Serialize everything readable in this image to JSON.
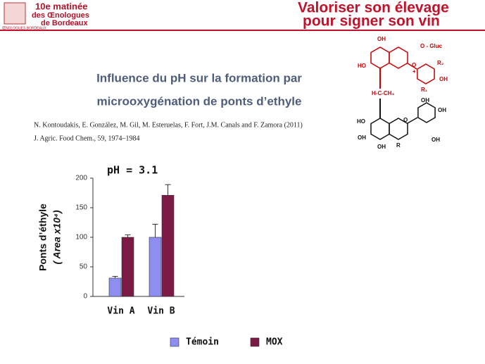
{
  "slide": {
    "logo": [
      "10e matinée",
      "des Œnologues",
      "de Bordeaux",
      "ŒNOLOGUES BORDEAUX"
    ],
    "header": [
      "Valoriser son élevage",
      "pour signer son vin"
    ],
    "title": [
      "Influence du pH sur la formation par",
      "microoxygénation de ponts d’ethyle"
    ],
    "citation": [
      "N. Kontoudakis, E. González, M. Gil, M. Esteruelas, F. Fort, J.M. Canals and F. Zamora (2011)",
      "J. Agric. Food Chem., 59, 1974–1984"
    ],
    "molecule": [
      "OH",
      "O - Gluc",
      "HO",
      "O",
      "+",
      "R₂",
      "OH",
      "R₁",
      "H-C-CH₃",
      "OH",
      "OH",
      "HO",
      "O",
      "OH",
      "OH",
      "R",
      "OH"
    ]
  },
  "chart_data": {
    "type": "bar",
    "title": "pH = 3.1",
    "ylabel": [
      "Ponts d’éthyle",
      "( Area x10⁴)"
    ],
    "categories": [
      "Vin A",
      "Vin B"
    ],
    "series": [
      {
        "name": "Témoin",
        "color": "#8e8ef0",
        "values": [
          31,
          100
        ],
        "errors": [
          3,
          22
        ]
      },
      {
        "name": "MOX",
        "color": "#7b1a45",
        "values": [
          100,
          171
        ],
        "errors": [
          4,
          18
        ]
      }
    ],
    "ylim": [
      0,
      200
    ],
    "yticks": [
      0,
      50,
      100,
      150,
      200
    ],
    "legend": "bottom"
  }
}
